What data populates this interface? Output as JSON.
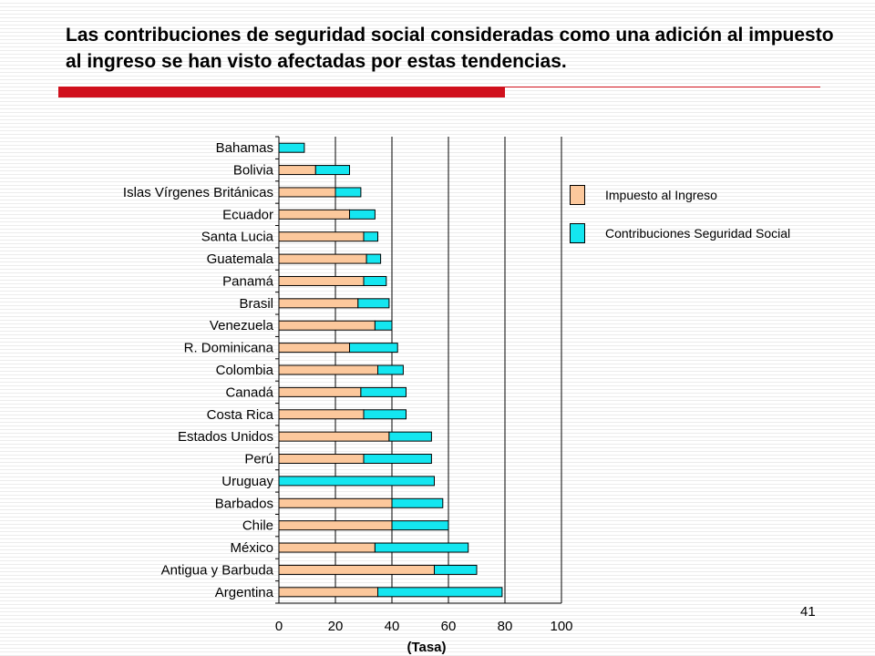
{
  "slide": {
    "title": "Las contribuciones de seguridad social consideradas como una adición al impuesto al ingreso se han visto afectadas por estas tendencias.",
    "page_number": "41"
  },
  "colors": {
    "income_tax": "#fcc89c",
    "social_security": "#14e6f0",
    "accent": "#d0101c"
  },
  "legend": {
    "income_tax_label": "Impuesto al Ingreso",
    "social_security_label": "Contribuciones Seguridad Social"
  },
  "chart_data": {
    "type": "bar",
    "orientation": "horizontal",
    "stacked": true,
    "title": "",
    "xlabel": "(Tasa)",
    "ylabel": "",
    "xlim": [
      0,
      100
    ],
    "xticks": [
      0,
      20,
      40,
      60,
      80,
      100
    ],
    "legend_position": "right",
    "categories": [
      "Bahamas",
      "Bolivia",
      "Islas Vírgenes Británicas",
      "Ecuador",
      "Santa Lucia",
      "Guatemala",
      "Panamá",
      "Brasil",
      "Venezuela",
      "R. Dominicana",
      "Colombia",
      "Canadá",
      "Costa Rica",
      "Estados Unidos",
      "Perú",
      "Uruguay",
      "Barbados",
      "Chile",
      "México",
      "Antigua y Barbuda",
      "Argentina"
    ],
    "series": [
      {
        "name": "Impuesto al Ingreso",
        "values": [
          0,
          13,
          20,
          25,
          30,
          31,
          30,
          28,
          34,
          25,
          35,
          29,
          30,
          39,
          30,
          0,
          40,
          40,
          34,
          55,
          35
        ]
      },
      {
        "name": "Contribuciones Seguridad Social",
        "values": [
          9,
          12,
          9,
          9,
          5,
          5,
          8,
          11,
          6,
          17,
          9,
          16,
          15,
          15,
          24,
          55,
          18,
          20,
          33,
          15,
          44
        ]
      }
    ]
  }
}
